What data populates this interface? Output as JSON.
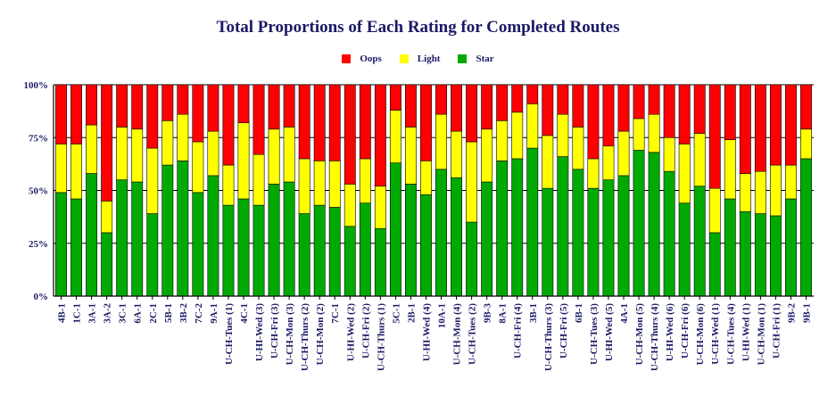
{
  "chart_data": {
    "type": "bar",
    "stacked": true,
    "percent": true,
    "title": "Total Proportions of Each Rating for Completed Routes",
    "xlabel": "",
    "ylabel": "",
    "ylim": [
      0,
      100
    ],
    "yticks": [
      "0%",
      "25%",
      "50%",
      "75%",
      "100%"
    ],
    "ytick_values": [
      0,
      25,
      50,
      75,
      100
    ],
    "grid": true,
    "legend": "top-center",
    "categories": [
      "4B-1",
      "1C-1",
      "3A-1",
      "3A-2",
      "3C-1",
      "6A-1",
      "2C-1",
      "5B-1",
      "3B-2",
      "7C-2",
      "9A-1",
      "U-CH-Tues (1)",
      "4C-1",
      "U-HI-Wed (3)",
      "U-CH-Fri (3)",
      "U-CH-Mon (3)",
      "U-CH-Thurs (2)",
      "U-CH-Mon (2)",
      "7C-1",
      "U-HI-Wed (2)",
      "U-CH-Fri (2)",
      "U-CH-Thurs (1)",
      "5C-1",
      "2B-1",
      "U-HI-Wed (4)",
      "10A-1",
      "U-CH-Mon (4)",
      "U-CH-Tues (2)",
      "9B-3",
      "8A-1",
      "U-CH-Fri (4)",
      "3B-1",
      "U-CH-Thurs (3)",
      "U-CH-Fri (5)",
      "6B-1",
      "U-CH-Tues (3)",
      "U-HI-Wed (5)",
      "4A-1",
      "U-CH-Mon (5)",
      "U-CH-Thurs (4)",
      "U-HI-Wed (6)",
      "U-CH-Fri (6)",
      "U-CH-Mon (6)",
      "U-CH-Wed (1)",
      "U-CH-Tues (4)",
      "U-HI-Wed (1)",
      "U-CH-Mon (1)",
      "U-CH-Fri (1)",
      "9B-2",
      "9B-1"
    ],
    "series": [
      {
        "name": "Star",
        "color": "#00aa00",
        "values": [
          49,
          46,
          58,
          30,
          55,
          54,
          39,
          62,
          64,
          49,
          57,
          43,
          46,
          43,
          53,
          54,
          39,
          43,
          42,
          33,
          44,
          32,
          63,
          53,
          48,
          60,
          56,
          35,
          54,
          64,
          65,
          70,
          51,
          66,
          60,
          51,
          55,
          57,
          69,
          68,
          59,
          44,
          52,
          30,
          46,
          40,
          39,
          38,
          46,
          65
        ]
      },
      {
        "name": "Light",
        "color": "#ffff00",
        "values": [
          23,
          26,
          23,
          15,
          25,
          25,
          31,
          21,
          22,
          24,
          21,
          19,
          36,
          24,
          26,
          26,
          26,
          21,
          22,
          20,
          21,
          20,
          25,
          27,
          16,
          26,
          22,
          38,
          25,
          19,
          22,
          21,
          25,
          20,
          20,
          14,
          16,
          21,
          15,
          18,
          16,
          28,
          25,
          21,
          28,
          18,
          20,
          24,
          16,
          14
        ]
      },
      {
        "name": "Oops",
        "color": "#ff0000",
        "values": [
          28,
          28,
          19,
          55,
          20,
          21,
          30,
          17,
          14,
          27,
          22,
          38,
          18,
          33,
          21,
          20,
          35,
          36,
          36,
          47,
          35,
          48,
          12,
          20,
          36,
          14,
          22,
          27,
          21,
          17,
          13,
          9,
          24,
          14,
          20,
          35,
          29,
          22,
          16,
          14,
          25,
          28,
          23,
          49,
          26,
          42,
          41,
          38,
          38,
          21
        ]
      }
    ],
    "legend_order": [
      "Oops",
      "Light",
      "Star"
    ]
  }
}
